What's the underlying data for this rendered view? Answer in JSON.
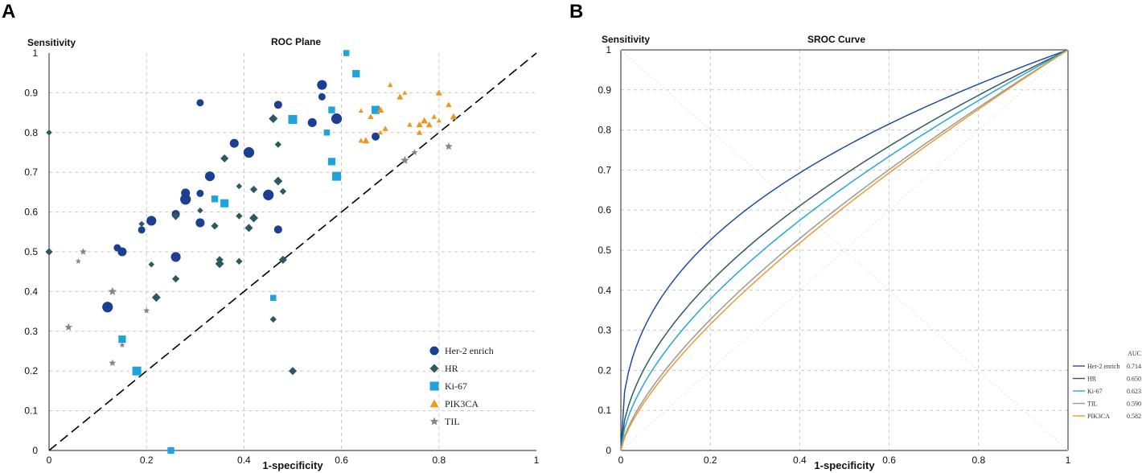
{
  "chart_data": [
    {
      "type": "scatter",
      "panel_label": "A",
      "title": "ROC Plane",
      "ylabel": "Sensitivity",
      "xlabel": "1-specificity",
      "xlim": [
        0,
        1
      ],
      "ylim": [
        0,
        1
      ],
      "xticks": [
        "0",
        "0.2",
        "0.4",
        "0.6",
        "0.8",
        "1"
      ],
      "yticks": [
        "0",
        "0.1",
        "0.2",
        "0.3",
        "0.4",
        "0.5",
        "0.6",
        "0.7",
        "0.8",
        "0.9",
        "1"
      ],
      "grid": true,
      "reference_line": "diagonal",
      "legend_position": "bottom-right",
      "series": [
        {
          "name": "Her-2 enrich",
          "marker": "circle",
          "color": "#1c3f94",
          "points": [
            [
              0.31,
              0.875
            ],
            [
              0.38,
              0.773
            ],
            [
              0.41,
              0.75
            ],
            [
              0.47,
              0.87
            ],
            [
              0.56,
              0.92
            ],
            [
              0.56,
              0.89
            ],
            [
              0.54,
              0.825
            ],
            [
              0.59,
              0.835
            ],
            [
              0.67,
              0.79
            ],
            [
              0.33,
              0.69
            ],
            [
              0.31,
              0.647
            ],
            [
              0.28,
              0.648
            ],
            [
              0.28,
              0.632
            ],
            [
              0.26,
              0.595
            ],
            [
              0.21,
              0.578
            ],
            [
              0.19,
              0.555
            ],
            [
              0.31,
              0.573
            ],
            [
              0.45,
              0.643
            ],
            [
              0.47,
              0.556
            ],
            [
              0.26,
              0.487
            ],
            [
              0.14,
              0.51
            ],
            [
              0.15,
              0.5
            ],
            [
              0.12,
              0.361
            ]
          ]
        },
        {
          "name": "HR",
          "marker": "diamond",
          "color": "#2b5a63",
          "points": [
            [
              0.0,
              0.8
            ],
            [
              0.0,
              0.5
            ],
            [
              0.46,
              0.835
            ],
            [
              0.47,
              0.77
            ],
            [
              0.36,
              0.735
            ],
            [
              0.39,
              0.665
            ],
            [
              0.42,
              0.657
            ],
            [
              0.47,
              0.678
            ],
            [
              0.48,
              0.652
            ],
            [
              0.26,
              0.59
            ],
            [
              0.31,
              0.604
            ],
            [
              0.34,
              0.565
            ],
            [
              0.42,
              0.585
            ],
            [
              0.39,
              0.59
            ],
            [
              0.41,
              0.56
            ],
            [
              0.19,
              0.57
            ],
            [
              0.35,
              0.48
            ],
            [
              0.35,
              0.47
            ],
            [
              0.39,
              0.476
            ],
            [
              0.48,
              0.48
            ],
            [
              0.21,
              0.468
            ],
            [
              0.26,
              0.432
            ],
            [
              0.22,
              0.385
            ],
            [
              0.46,
              0.33
            ],
            [
              0.5,
              0.2
            ]
          ]
        },
        {
          "name": "Ki-67",
          "marker": "square",
          "color": "#1fa3da",
          "points": [
            [
              0.61,
              1.0
            ],
            [
              0.63,
              0.948
            ],
            [
              0.5,
              0.833
            ],
            [
              0.58,
              0.857
            ],
            [
              0.67,
              0.857
            ],
            [
              0.57,
              0.8
            ],
            [
              0.58,
              0.727
            ],
            [
              0.59,
              0.69
            ],
            [
              0.34,
              0.633
            ],
            [
              0.36,
              0.622
            ],
            [
              0.46,
              0.384
            ],
            [
              0.15,
              0.28
            ],
            [
              0.18,
              0.2
            ],
            [
              0.25,
              0.0
            ]
          ]
        },
        {
          "name": "PIK3CA",
          "marker": "triangle",
          "color": "#f0961e",
          "points": [
            [
              0.64,
              0.855
            ],
            [
              0.66,
              0.84
            ],
            [
              0.68,
              0.857
            ],
            [
              0.7,
              0.92
            ],
            [
              0.72,
              0.89
            ],
            [
              0.73,
              0.9
            ],
            [
              0.76,
              0.8
            ],
            [
              0.77,
              0.83
            ],
            [
              0.79,
              0.84
            ],
            [
              0.8,
              0.9
            ],
            [
              0.8,
              0.83
            ],
            [
              0.82,
              0.87
            ],
            [
              0.83,
              0.84
            ],
            [
              0.74,
              0.82
            ],
            [
              0.76,
              0.82
            ],
            [
              0.68,
              0.8
            ],
            [
              0.69,
              0.81
            ],
            [
              0.65,
              0.78
            ],
            [
              0.64,
              0.78
            ],
            [
              0.78,
              0.82
            ]
          ]
        },
        {
          "name": "TIL",
          "marker": "star",
          "color": "#8f8283",
          "points": [
            [
              0.06,
              0.476
            ],
            [
              0.07,
              0.5
            ],
            [
              0.13,
              0.4
            ],
            [
              0.2,
              0.352
            ],
            [
              0.04,
              0.31
            ],
            [
              0.15,
              0.265
            ],
            [
              0.13,
              0.22
            ],
            [
              0.73,
              0.73
            ],
            [
              0.75,
              0.75
            ],
            [
              0.82,
              0.765
            ]
          ]
        }
      ]
    },
    {
      "type": "line",
      "panel_label": "B",
      "title": "SROC Curve",
      "ylabel": "Sensitivity",
      "xlabel": "1-specificity",
      "xlim": [
        0,
        1
      ],
      "ylim": [
        0,
        1
      ],
      "xticks": [
        "0",
        "0.2",
        "0.4",
        "0.6",
        "0.8",
        "1"
      ],
      "yticks": [
        "0",
        "0.1",
        "0.2",
        "0.3",
        "0.4",
        "0.5",
        "0.6",
        "0.7",
        "0.8",
        "0.9",
        "1"
      ],
      "grid": true,
      "legend_position": "bottom-right",
      "legend_header": "AUC",
      "series": [
        {
          "name": "Her-2 enrich",
          "auc_label": "0.714",
          "auc": 0.714,
          "color": "#1f4e9e"
        },
        {
          "name": "HR",
          "auc_label": "0.650",
          "auc": 0.65,
          "color": "#2e5d5f"
        },
        {
          "name": "Ki-67",
          "auc_label": "0.623",
          "auc": 0.623,
          "color": "#23a8dc"
        },
        {
          "name": "TIL",
          "auc_label": "0.590",
          "auc": 0.59,
          "color": "#9a9a9a"
        },
        {
          "name": "PIK3CA",
          "auc_label": "0.582",
          "auc": 0.582,
          "color": "#ee9a2d"
        }
      ]
    }
  ],
  "colors": {
    "axis": "#222222",
    "grid": "#c8c8c8",
    "diagonal": "#000000"
  }
}
